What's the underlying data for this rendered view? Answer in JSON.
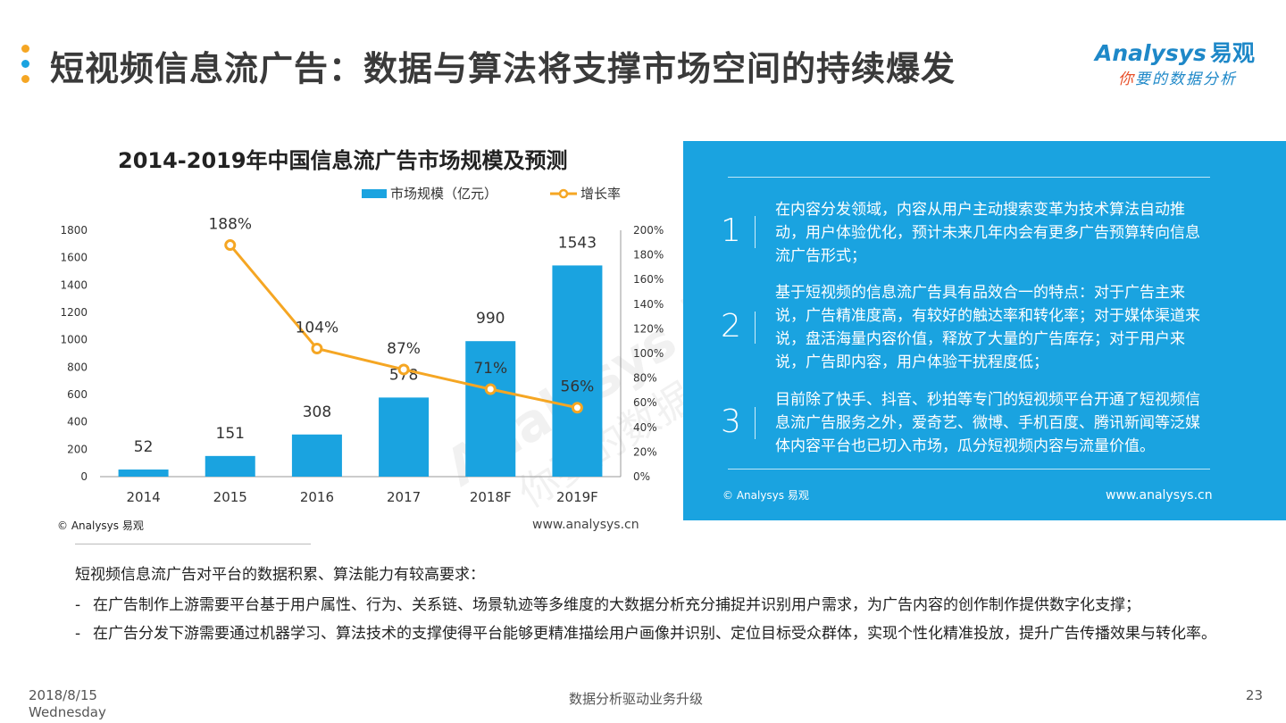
{
  "header": {
    "title": "短视频信息流广告：数据与算法将支撑市场空间的持续爆发",
    "dot_colors": [
      "#f5a623",
      "#1aa3e0",
      "#f5a623"
    ]
  },
  "logo": {
    "brand": "Analysys",
    "brand_cn": "易观",
    "tagline_first": "你",
    "tagline_rest": "要的数据分析"
  },
  "chart_data": {
    "type": "bar",
    "title": "2014-2019年中国信息流广告市场规模及预测",
    "categories": [
      "2014",
      "2015",
      "2016",
      "2017",
      "2018F",
      "2019F"
    ],
    "series": [
      {
        "name": "市场规模（亿元）",
        "kind": "bar",
        "color": "#1aa3e0",
        "values": [
          52,
          151,
          308,
          578,
          990,
          1543
        ],
        "labels": [
          "52",
          "151",
          "308",
          "578",
          "990",
          "1543"
        ]
      },
      {
        "name": "增长率",
        "kind": "line",
        "color": "#f5a623",
        "values": [
          null,
          188,
          104,
          87,
          71,
          56
        ],
        "labels": [
          "",
          "188%",
          "104%",
          "87%",
          "71%",
          "56%"
        ]
      }
    ],
    "ylim": [
      0,
      1800
    ],
    "yticks": [
      "0",
      "200",
      "400",
      "600",
      "800",
      "1000",
      "1200",
      "1400",
      "1600",
      "1800"
    ],
    "y2lim": [
      0,
      200
    ],
    "y2ticks": [
      "0%",
      "20%",
      "40%",
      "60%",
      "80%",
      "100%",
      "120%",
      "140%",
      "160%",
      "180%",
      "200%"
    ],
    "legend": "top-right",
    "grid": false
  },
  "chart_footer": {
    "source": "© Analysys 易观",
    "url": "www.analysys.cn"
  },
  "panel": {
    "items": [
      {
        "num": "1",
        "text": "在内容分发领域，内容从用户主动搜索变革为技术算法自动推动，用户体验优化，预计未来几年内会有更多广告预算转向信息流广告形式；"
      },
      {
        "num": "2",
        "text": "基于短视频的信息流广告具有品效合一的特点：对于广告主来说，广告精准度高，有较好的触达率和转化率；对于媒体渠道来说，盘活海量内容价值，释放了大量的广告库存；对于用户来说，广告即内容，用户体验干扰程度低；"
      },
      {
        "num": "3",
        "text": "目前除了快手、抖音、秒拍等专门的短视频平台开通了短视频信息流广告服务之外，爱奇艺、微博、手机百度、腾讯新闻等泛媒体内容平台也已切入市场，瓜分短视频内容与流量价值。"
      }
    ],
    "source": "© Analysys 易观",
    "url": "www.analysys.cn"
  },
  "body": {
    "intro": "短视频信息流广告对平台的数据积累、算法能力有较高要求：",
    "bullets": [
      "在广告制作上游需要平台基于用户属性、行为、关系链、场景轨迹等多维度的大数据分析充分捕捉并识别用户需求，为广告内容的创作制作提供数字化支撑；",
      "在广告分发下游需要通过机器学习、算法技术的支撑使得平台能够更精准描绘用户画像并识别、定位目标受众群体，实现个性化精准投放，提升广告传播效果与转化率。"
    ],
    "dash": "-"
  },
  "footer": {
    "date": "2018/8/15",
    "weekday": "Wednesday",
    "slogan": "数据分析驱动业务升级",
    "page": "23"
  }
}
